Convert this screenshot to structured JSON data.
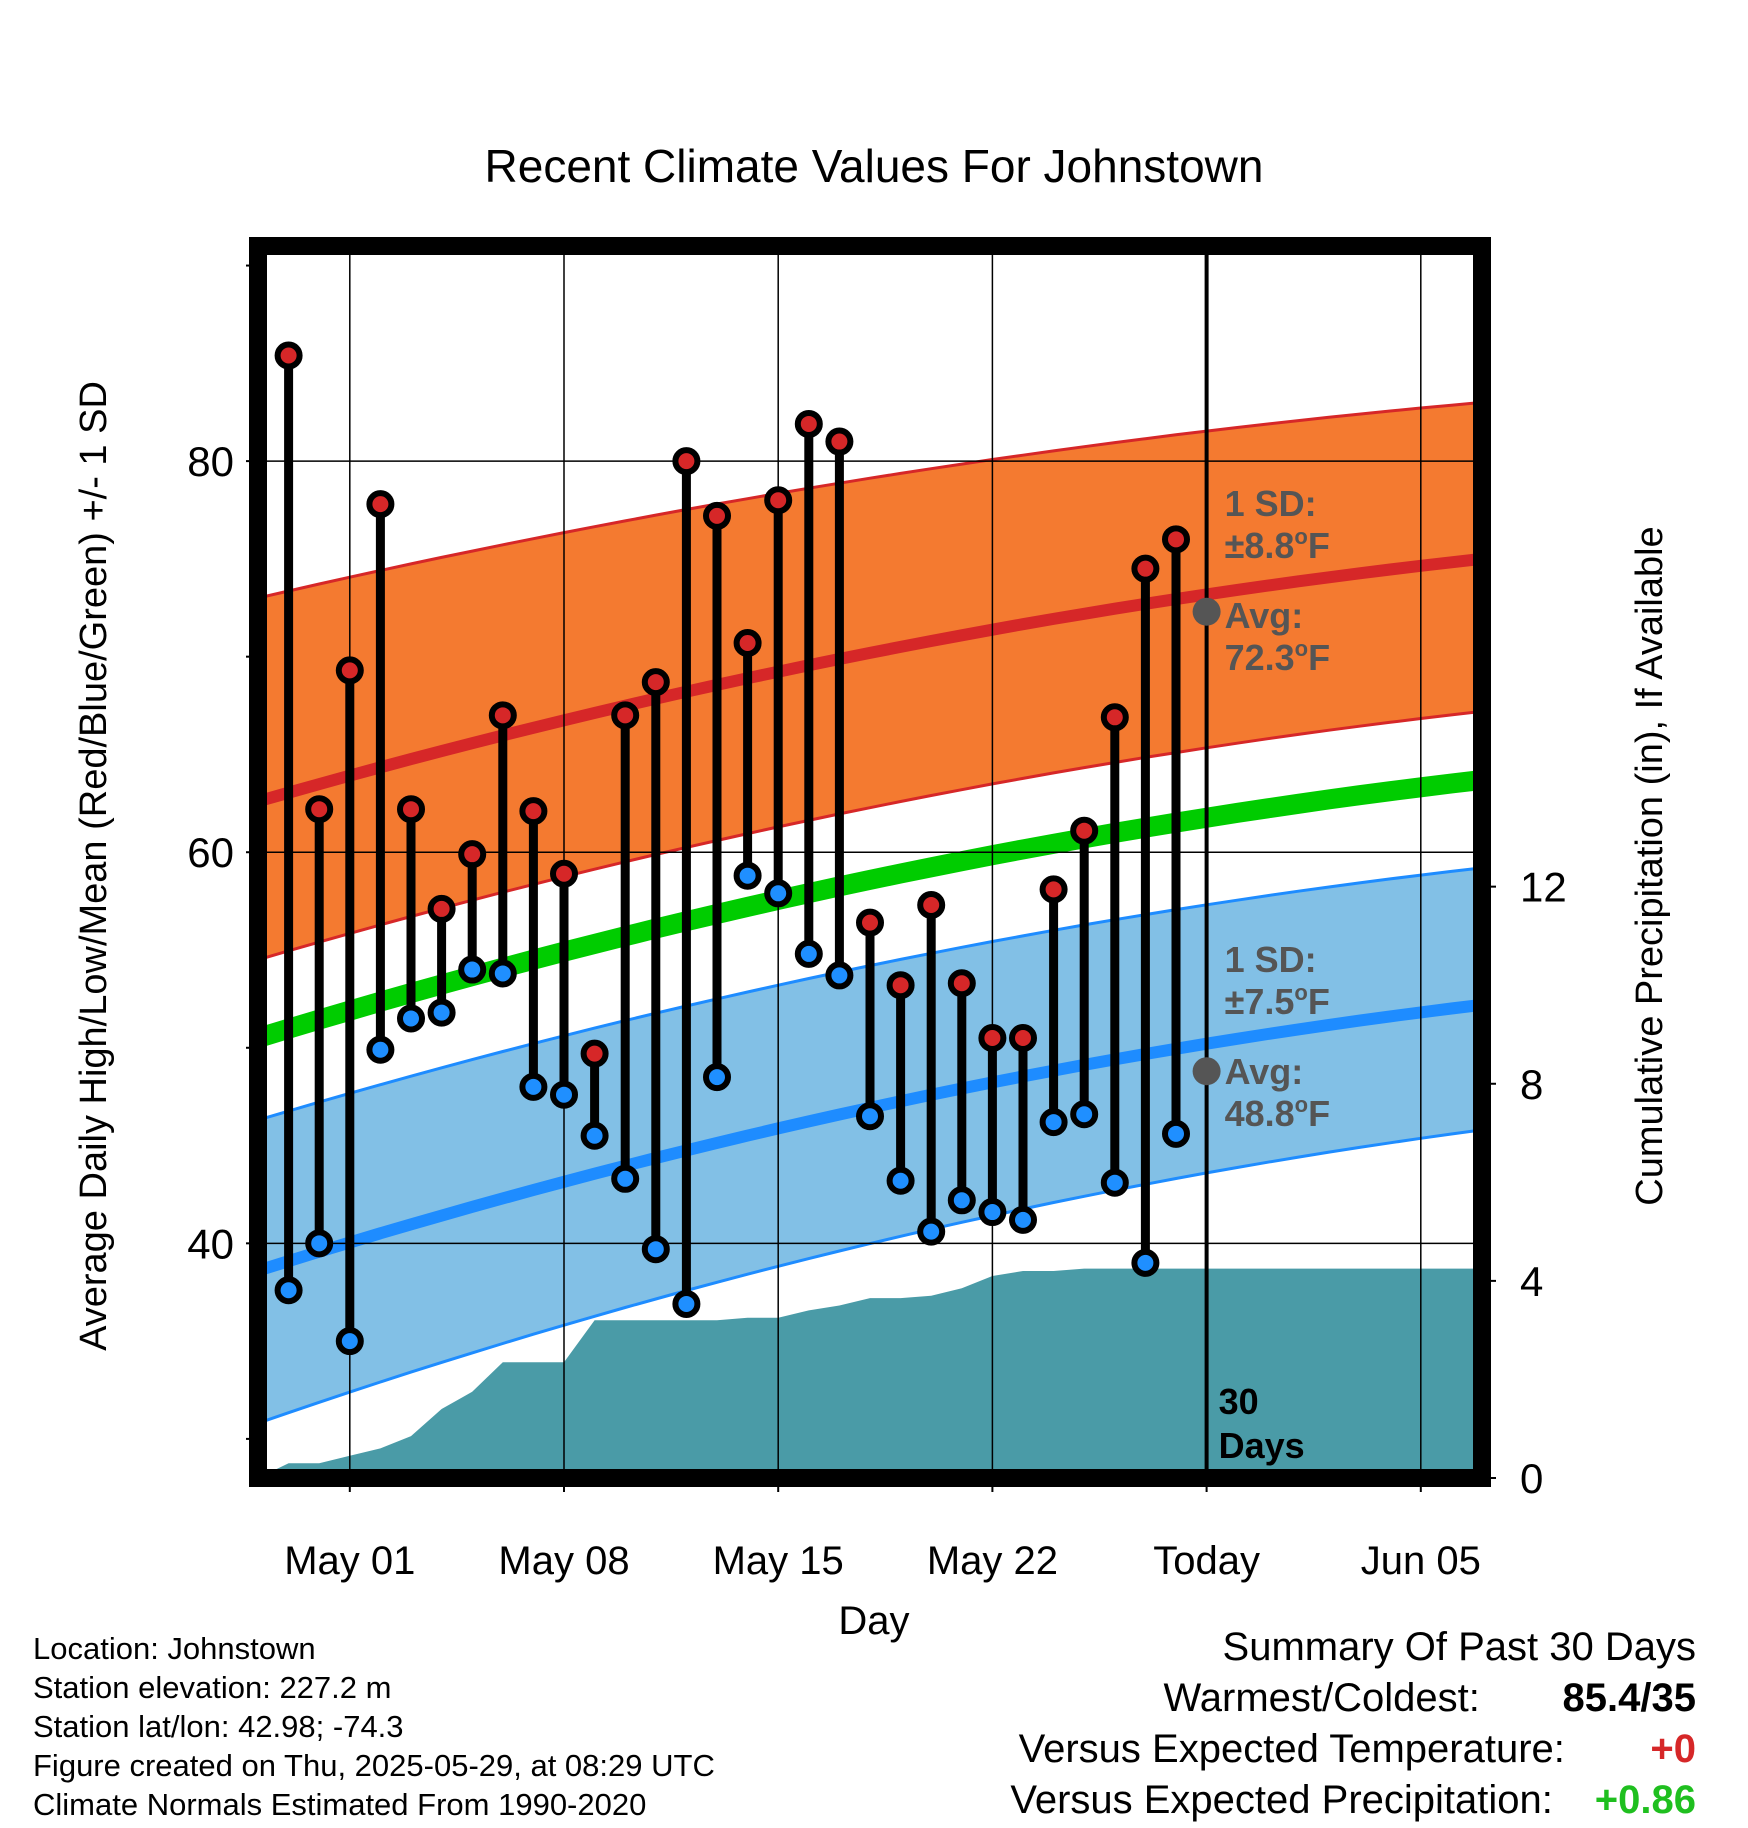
{
  "chart_data": {
    "type": "line",
    "title": "Recent Climate Values For Johnstown",
    "xlabel": "Day",
    "ylabel_left": "Average Daily High/Low/Mean (Red/Blue/Green) +/- 1 SD",
    "ylabel_right": "Cumulative Precipitation (in), If Available",
    "x_tick_labels": [
      "May 01",
      "May 08",
      "May 15",
      "May 22",
      "Today",
      "Jun 05"
    ],
    "x_tick_dates": [
      "2025-05-01",
      "2025-05-08",
      "2025-05-15",
      "2025-05-22",
      "2025-05-29",
      "2025-06-05"
    ],
    "xlim": [
      "2025-04-28",
      "2025-06-07"
    ],
    "ylim_left": [
      28,
      91
    ],
    "ylim_right": [
      0,
      25
    ],
    "y_ticks_left": [
      40,
      60,
      80
    ],
    "y_ticks_right": [
      0,
      4,
      8,
      12
    ],
    "grid": true,
    "today": "2025-05-29",
    "today_label": [
      "30",
      "Days"
    ],
    "colors": {
      "high_marker": "#d62728",
      "low_marker": "#1f8fff",
      "high_band": "#f47a30",
      "high_mean_line": "#d62728",
      "low_band": "#82c0e6",
      "low_mean_line": "#1e8cff",
      "mean_line": "#00cc00",
      "precip": "#4a9ba7",
      "annotation": "#555555"
    },
    "daily": {
      "dates": [
        "2025-04-29",
        "2025-04-30",
        "2025-05-01",
        "2025-05-02",
        "2025-05-03",
        "2025-05-04",
        "2025-05-05",
        "2025-05-06",
        "2025-05-07",
        "2025-05-08",
        "2025-05-09",
        "2025-05-10",
        "2025-05-11",
        "2025-05-12",
        "2025-05-13",
        "2025-05-14",
        "2025-05-15",
        "2025-05-16",
        "2025-05-17",
        "2025-05-18",
        "2025-05-19",
        "2025-05-20",
        "2025-05-21",
        "2025-05-22",
        "2025-05-23",
        "2025-05-24",
        "2025-05-25",
        "2025-05-26",
        "2025-05-27",
        "2025-05-28"
      ],
      "high": [
        85.4,
        62.2,
        69.3,
        77.8,
        62.2,
        57.1,
        59.9,
        67.0,
        62.1,
        58.9,
        49.7,
        67.0,
        68.7,
        80.0,
        77.2,
        70.7,
        78.0,
        81.9,
        81.0,
        56.4,
        53.2,
        57.3,
        53.3,
        50.5,
        50.5,
        58.1,
        61.1,
        66.9,
        74.5,
        76.0
      ],
      "low": [
        37.6,
        40.0,
        35.0,
        49.9,
        51.5,
        51.8,
        54.0,
        53.8,
        48.0,
        47.6,
        45.5,
        43.3,
        39.7,
        36.9,
        48.5,
        58.8,
        57.9,
        54.8,
        53.7,
        46.5,
        43.2,
        40.6,
        42.2,
        41.6,
        41.2,
        46.2,
        46.6,
        43.1,
        39.0,
        45.6
      ]
    },
    "normals": {
      "dates": [
        "2025-04-28",
        "2025-06-07"
      ],
      "high_mean": [
        62.6,
        75.0
      ],
      "high_upper": [
        73.0,
        83.0
      ],
      "high_lower": [
        54.5,
        67.2
      ],
      "mean": [
        50.5,
        63.7
      ],
      "low_mean": [
        38.6,
        52.2
      ],
      "low_upper": [
        46.3,
        59.2
      ],
      "low_lower": [
        30.8,
        45.8
      ]
    },
    "precip_cumulative": {
      "dates": [
        "2025-04-28",
        "2025-04-29",
        "2025-04-30",
        "2025-05-01",
        "2025-05-02",
        "2025-05-03",
        "2025-05-04",
        "2025-05-05",
        "2025-05-06",
        "2025-05-07",
        "2025-05-08",
        "2025-05-09",
        "2025-05-10",
        "2025-05-11",
        "2025-05-12",
        "2025-05-13",
        "2025-05-14",
        "2025-05-15",
        "2025-05-16",
        "2025-05-17",
        "2025-05-18",
        "2025-05-19",
        "2025-05-20",
        "2025-05-21",
        "2025-05-22",
        "2025-05-23",
        "2025-05-24",
        "2025-05-25",
        "2025-05-26",
        "2025-05-27",
        "2025-05-28",
        "2025-05-29",
        "2025-06-07"
      ],
      "values": [
        0.0,
        0.3,
        0.3,
        0.45,
        0.6,
        0.85,
        1.4,
        1.75,
        2.35,
        2.35,
        2.35,
        3.2,
        3.2,
        3.2,
        3.2,
        3.2,
        3.25,
        3.25,
        3.4,
        3.5,
        3.65,
        3.65,
        3.7,
        3.85,
        4.1,
        4.2,
        4.2,
        4.25,
        4.25,
        4.25,
        4.25,
        4.25,
        4.25
      ]
    },
    "annotations": {
      "high_sd_label": "1 SD:",
      "high_sd_value": "±8.8",
      "high_avg_label": "Avg:",
      "high_avg_value": "72.3",
      "high_avg_point": 72.3,
      "low_sd_label": "1 SD:",
      "low_sd_value": "±7.5",
      "low_avg_label": "Avg:",
      "low_avg_value": "48.8",
      "low_avg_point": 48.8,
      "unit_sup": "o",
      "unit": "F"
    }
  },
  "info": {
    "location": "Location: Johnstown",
    "elevation": "Station elevation: 227.2 m",
    "latlon": "Station lat/lon: 42.98; -74.3",
    "created": "Figure created on Thu, 2025-05-29, at 08:29 UTC",
    "normals": "Climate Normals Estimated From 1990-2020"
  },
  "summary": {
    "title": "Summary Of Past 30 Days",
    "warmest_label": "Warmest/Coldest:",
    "warmest_value": "85.4/35",
    "temp_label": "Versus Expected Temperature:",
    "temp_value": "+0",
    "temp_color": "#d62728",
    "precip_label": "Versus Expected Precipitation:",
    "precip_value": "+0.86",
    "precip_color": "#1fbf1f"
  }
}
